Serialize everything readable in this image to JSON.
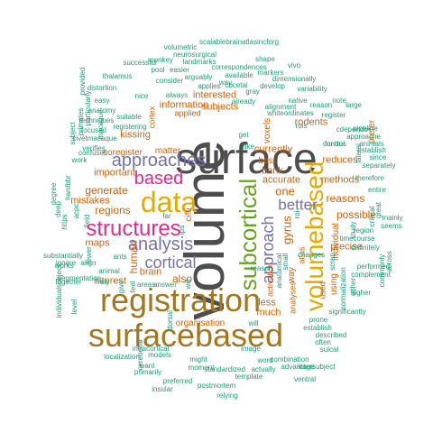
{
  "palette": {
    "gray": "#4d4d4d",
    "brown": "#a6761d",
    "gold": "#e6ab02",
    "green": "#66a61e",
    "purple": "#7570b3",
    "magenta": "#e7298a",
    "orange": "#d95f02",
    "teal": "#1b9e77"
  },
  "words": [
    "volume",
    "surface",
    "registration",
    "surfacebased",
    "data",
    "volumebased",
    "subcortical",
    "structures",
    "based",
    "approaches",
    "analysis",
    "cortical",
    "approach",
    "better",
    "one",
    "gyrus",
    "currently",
    "accurate",
    "bank",
    "reduces",
    "methods",
    "reasons",
    "possible",
    "regions",
    "generate",
    "mistakes",
    "maps",
    "human",
    "also",
    "brain",
    "much",
    "less",
    "important",
    "kissing",
    "information",
    "interested",
    "subjects",
    "rodents",
    "best",
    "used",
    "individual",
    "using",
    "precise",
    "interest",
    "matter",
    "cifti",
    "way",
    "coregister",
    "prefer",
    "voxels",
    "atlas",
    "cortex",
    "analyses",
    "activation",
    "organisation",
    "applied",
    "scalablebrainatlasincforg",
    "volumetric",
    "neurosurgical",
    "monkey",
    "landmarks",
    "shape",
    "vivo",
    "successful",
    "pool",
    "easier",
    "correspondences",
    "markers",
    "thalamus",
    "consider",
    "arguably",
    "available",
    "dimensionally",
    "distortion",
    "applies",
    "cbcetal",
    "gray",
    "develop",
    "variability",
    "nice",
    "always",
    "already",
    "native",
    "note",
    "alignment",
    "whiteordinates",
    "register",
    "reason",
    "large",
    "rois",
    "cdepends",
    "control",
    "fundus",
    "easy",
    "anatomy",
    "techniques",
    "suitable",
    "registering",
    "focused",
    "civetmacaque",
    "verifies",
    "provided",
    "particularly",
    "macaque",
    "confuses",
    "work",
    "subject",
    "primates",
    "pipeline",
    "approache",
    "animals",
    "establish",
    "since",
    "separately",
    "therefore",
    "lateral",
    "study",
    "entire",
    "mainly",
    "seems",
    "critical",
    "great",
    "region",
    "timecourse",
    "definitely",
    "performed",
    "complement",
    "commonly",
    "across",
    "higher",
    "either",
    "normalization",
    "scrap",
    "prone",
    "establish",
    "described",
    "often",
    "sulcal",
    "significantly",
    "combination",
    "advantage",
    "intersubject",
    "ventral",
    "image",
    "will",
    "intracortical",
    "localization",
    "cerebellar",
    "models",
    "want",
    "primarily",
    "might",
    "moment",
    "standardized",
    "preferred",
    "template",
    "actually",
    "insular",
    "postmortem",
    "relying",
    "rely",
    "ignore",
    "together",
    "substantially",
    "works",
    "segmentation",
    "individualsubject",
    "level",
    "degree",
    "deep",
    "https",
    "hardbbr",
    "acpc",
    "field",
    "align",
    "ants",
    "animal",
    "answer",
    "areas",
    "feel",
    "give",
    "far",
    "ips",
    "will",
    "like",
    "small",
    "roi",
    "word",
    "changes",
    "anatomical",
    "dorsal",
    "get",
    "way",
    "fewer",
    "reason"
  ]
}
